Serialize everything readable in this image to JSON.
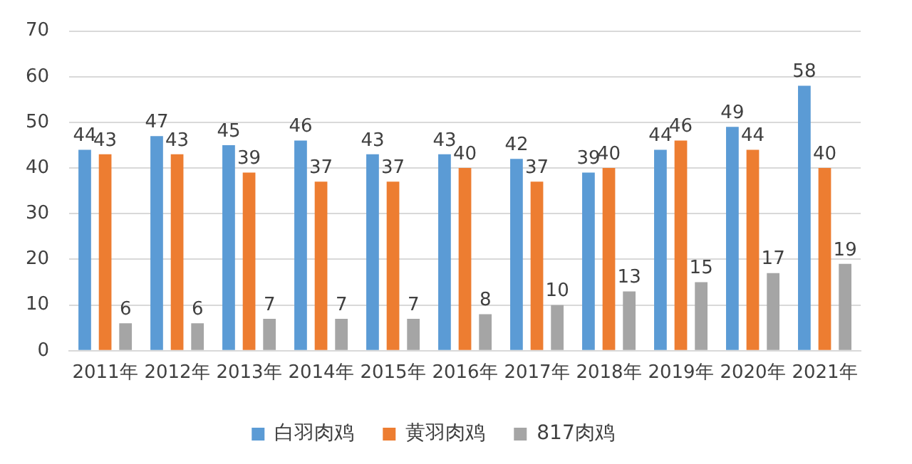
{
  "chart_data": {
    "type": "bar",
    "categories": [
      "2011年",
      "2012年",
      "2013年",
      "2014年",
      "2015年",
      "2016年",
      "2017年",
      "2018年",
      "2019年",
      "2020年",
      "2021年"
    ],
    "series": [
      {
        "name": "白羽肉鸡",
        "color": "#5b9bd5",
        "values": [
          44,
          47,
          45,
          46,
          43,
          43,
          42,
          39,
          44,
          49,
          58
        ]
      },
      {
        "name": "黄羽肉鸡",
        "color": "#ed7d31",
        "values": [
          43,
          43,
          39,
          37,
          37,
          40,
          37,
          40,
          46,
          44,
          40
        ]
      },
      {
        "name": "817肉鸡",
        "color": "#a5a5a5",
        "values": [
          6,
          6,
          7,
          7,
          7,
          8,
          10,
          13,
          15,
          17,
          19
        ]
      }
    ],
    "ylim": [
      0,
      70
    ],
    "yticks": [
      0,
      10,
      20,
      30,
      40,
      50,
      60,
      70
    ],
    "grid": "y",
    "legend": "bottom",
    "data_labels": true
  }
}
